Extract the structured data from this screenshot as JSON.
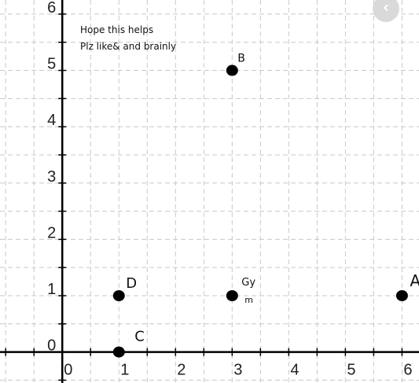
{
  "chart_data": {
    "type": "scatter",
    "title": "",
    "xlabel": "",
    "ylabel": "",
    "xlim": [
      -1.1,
      6.3
    ],
    "ylim": [
      -0.55,
      6.25
    ],
    "grid": true,
    "x_ticks": [
      0,
      1,
      2,
      3,
      4,
      5,
      6
    ],
    "y_ticks": [
      0,
      1,
      2,
      3,
      4,
      5,
      6
    ],
    "points": [
      {
        "label": "A",
        "x": 6,
        "y": 1
      },
      {
        "label": "B",
        "x": 3,
        "y": 5
      },
      {
        "label": "C",
        "x": 1,
        "y": 0
      },
      {
        "label": "D",
        "x": 1,
        "y": 1
      },
      {
        "label": "Gy m",
        "x": 3,
        "y": 1
      }
    ],
    "annotations": [
      "Hope this helps",
      "Plz like& and brainly"
    ]
  },
  "ui": {
    "nav_icon": "chevron-left-icon",
    "nav_glyph": "‹"
  }
}
